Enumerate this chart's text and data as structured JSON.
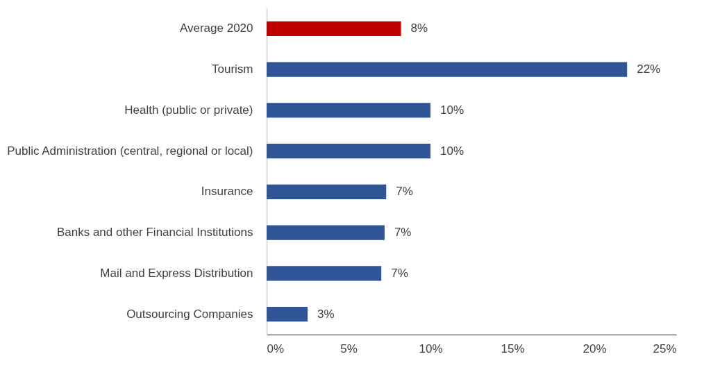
{
  "chart_data": {
    "type": "bar",
    "orientation": "horizontal",
    "categories": [
      "Average 2020",
      "Tourism",
      "Health (public or private)",
      "Public Administration (central, regional or local)",
      "Insurance",
      "Banks and other Financial Institutions",
      "Mail and Express Distribution",
      "Outsourcing Companies"
    ],
    "values": [
      8.2,
      22.0,
      10.0,
      10.0,
      7.3,
      7.2,
      7.0,
      2.5
    ],
    "colors": [
      "#c00000",
      "#2f5597",
      "#2f5597",
      "#2f5597",
      "#2f5597",
      "#2f5597",
      "#2f5597",
      "#2f5597"
    ],
    "value_labels": [
      "8%",
      "22%",
      "10%",
      "10%",
      "7%",
      "7%",
      "7%",
      "3%"
    ],
    "xlim": [
      0,
      25
    ],
    "xticks": [
      {
        "value": 0,
        "label": "0%"
      },
      {
        "value": 5,
        "label": "5%"
      },
      {
        "value": 10,
        "label": "10%"
      },
      {
        "value": 15,
        "label": "15%"
      },
      {
        "value": 20,
        "label": "20%"
      },
      {
        "value": 25,
        "label": "25%"
      }
    ],
    "grid": false
  }
}
